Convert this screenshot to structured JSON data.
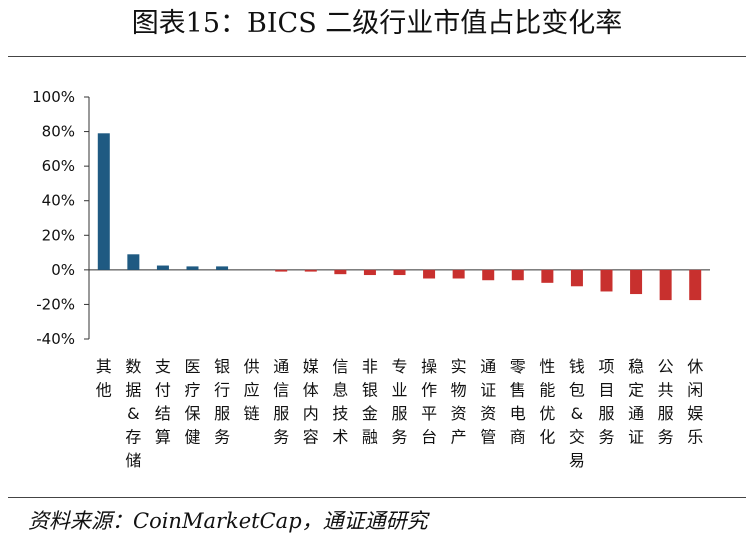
{
  "header": {
    "title": "图表15：BICS 二级行业市值占比变化率"
  },
  "footer": {
    "source": "资料来源：CoinMarketCap，通证通研究"
  },
  "colors": {
    "positive": "#1f5a82",
    "negative": "#c8302e",
    "axis": "#333333"
  },
  "chart_data": {
    "type": "bar",
    "title": "",
    "xlabel": "",
    "ylabel": "",
    "ylim": [
      -40,
      100
    ],
    "yticks": [
      100,
      80,
      60,
      40,
      20,
      0,
      -20,
      -40
    ],
    "ytick_labels": [
      "100%",
      "80%",
      "60%",
      "40%",
      "20%",
      "0%",
      "-20%",
      "-40%"
    ],
    "unit": "%",
    "grid": false,
    "categories": [
      "其他",
      "数据&存储",
      "支付结算",
      "医疗保健",
      "银行服务",
      "供应链",
      "通信服务",
      "媒体内容",
      "信息技术",
      "非银金融",
      "专业服务",
      "操作平台",
      "实物资产",
      "通证资管",
      "零售电商",
      "性能优化",
      "钱包&交易",
      "项目服务",
      "稳定通证",
      "公共服务",
      "休闲娱乐"
    ],
    "values": [
      79,
      9,
      2.5,
      2,
      2,
      0,
      -1,
      -1,
      -2.5,
      -3,
      -3,
      -5,
      -5,
      -6,
      -6,
      -7.5,
      -9.5,
      -12.5,
      -14,
      -17.5,
      -17.5
    ]
  }
}
